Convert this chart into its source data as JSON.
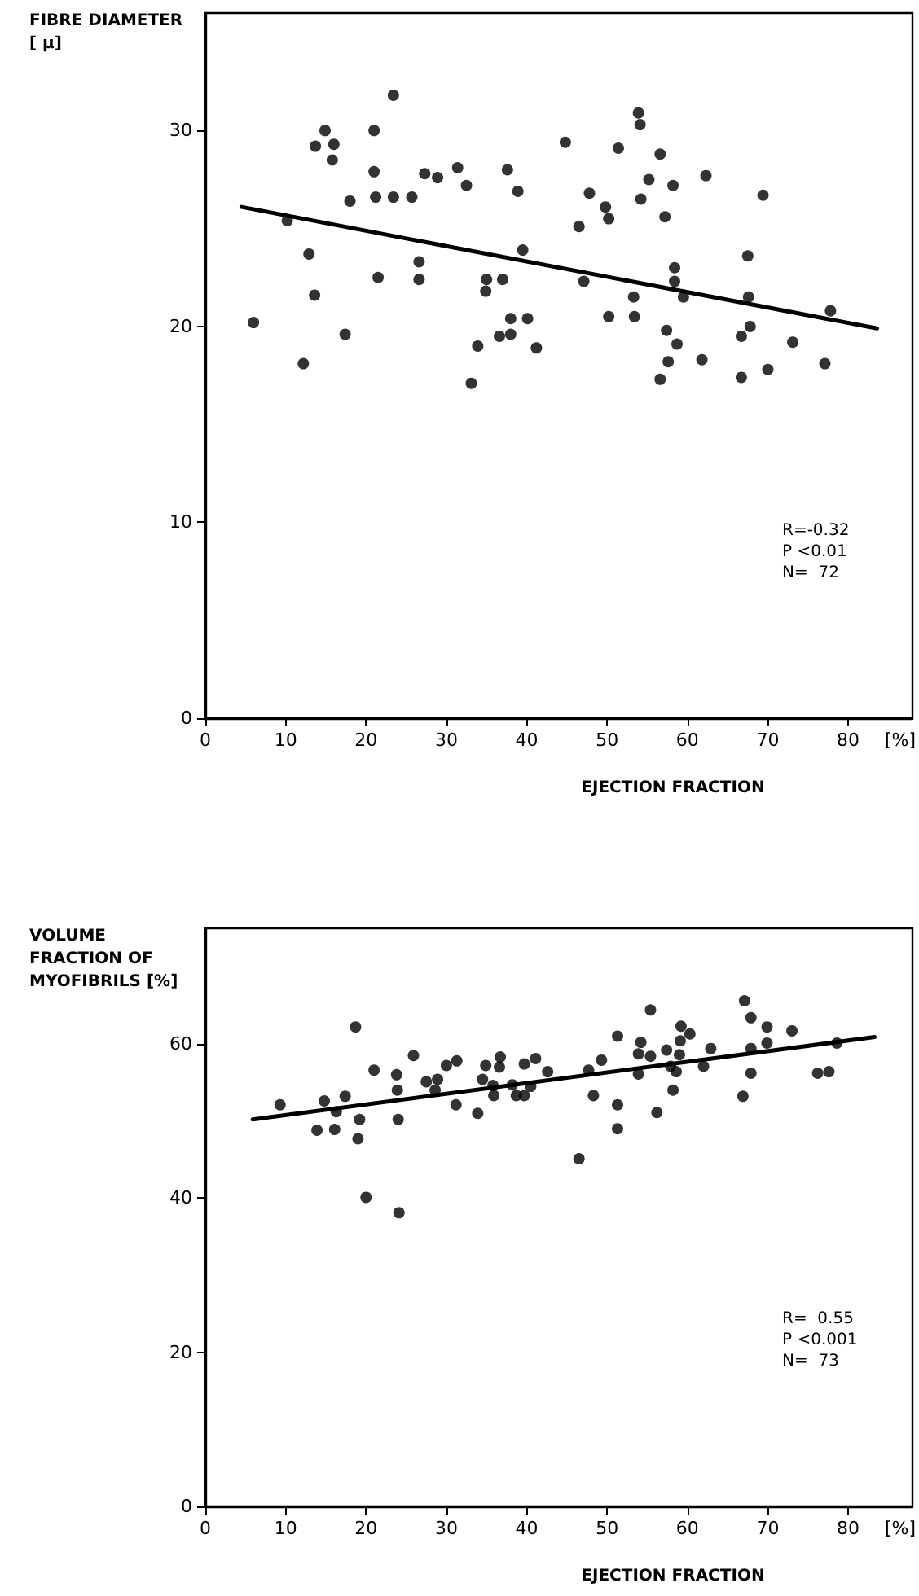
{
  "chart_data": [
    {
      "type": "scatter",
      "xlabel": "EJECTION FRACTION",
      "ylabel": "FIBRE DIAMETER [ μ]",
      "annotations": [
        "[%]",
        "R=-0.32",
        "P <0.01",
        "N=  72"
      ],
      "xlim": [
        0,
        88
      ],
      "xticks": [
        0,
        10,
        20,
        30,
        40,
        50,
        60,
        70,
        80
      ],
      "ylim": [
        0,
        36
      ],
      "yticks": [
        0,
        10,
        20,
        30
      ],
      "grid": false,
      "marker": "circle",
      "series": [
        {
          "color": "#000000",
          "x": [
            23.4,
            14.9,
            21.0,
            13.7,
            16.0,
            15.8,
            21.0,
            27.3,
            28.9,
            31.4,
            32.5,
            37.6,
            38.9,
            44.8,
            18.0,
            21.2,
            23.4,
            25.7,
            10.2,
            12.9,
            26.6,
            39.5,
            21.5,
            26.6,
            35.0,
            37.0,
            34.9,
            13.6,
            6.0,
            17.4,
            38.0,
            40.1,
            36.6,
            38.0,
            33.9,
            41.2,
            12.2,
            33.1,
            53.9,
            54.1,
            51.4,
            56.6,
            62.3,
            55.2,
            58.2,
            47.8,
            54.2,
            69.4,
            49.8,
            50.2,
            57.2,
            46.5,
            67.5,
            58.4,
            58.4,
            47.1,
            59.5,
            53.3,
            67.6,
            77.8,
            50.2,
            53.4,
            57.4,
            67.8,
            66.7,
            58.7,
            73.1,
            61.8,
            57.6,
            70.0,
            77.1,
            56.6,
            66.7
          ],
          "values": [
            31.8,
            30.0,
            30.0,
            29.2,
            29.3,
            28.5,
            27.9,
            27.8,
            27.6,
            28.1,
            27.2,
            28.0,
            26.9,
            29.4,
            26.4,
            26.6,
            26.6,
            26.6,
            25.4,
            23.7,
            23.3,
            23.9,
            22.5,
            22.4,
            22.4,
            22.4,
            21.8,
            21.6,
            20.2,
            19.6,
            20.4,
            20.4,
            19.5,
            19.6,
            19.0,
            18.9,
            18.1,
            17.1,
            30.9,
            30.3,
            29.1,
            28.8,
            27.7,
            27.5,
            27.2,
            26.8,
            26.5,
            26.7,
            26.1,
            25.5,
            25.6,
            25.1,
            23.6,
            23.0,
            22.3,
            22.3,
            21.5,
            21.5,
            21.5,
            20.8,
            20.5,
            20.5,
            19.8,
            20.0,
            19.5,
            19.1,
            19.2,
            18.3,
            18.2,
            17.8,
            18.1,
            17.3,
            17.4
          ]
        },
        {
          "type": "line",
          "color": "#000000",
          "marker": "none",
          "line_style": "solid",
          "x": [
            4.5,
            83.6
          ],
          "values": [
            26.1,
            19.9
          ]
        }
      ]
    },
    {
      "type": "scatter",
      "xlabel": "EJECTION FRACTION",
      "ylabel": "VOLUME FRACTION OF MYOFIBRILS [%]",
      "annotations": [
        "[%]",
        "R=  0.55",
        "P <0.001",
        "N=  73"
      ],
      "xlim": [
        0,
        88
      ],
      "xticks": [
        0,
        10,
        20,
        30,
        40,
        50,
        60,
        70,
        80
      ],
      "ylim": [
        0,
        75
      ],
      "yticks": [
        0,
        20,
        40,
        60
      ],
      "grid": false,
      "marker": "circle",
      "series": [
        {
          "color": "#000000",
          "x": [
            18.7,
            25.9,
            21.0,
            23.8,
            23.9,
            30.0,
            31.3,
            27.5,
            28.9,
            28.6,
            34.9,
            36.7,
            36.6,
            34.5,
            35.8,
            35.9,
            39.7,
            41.1,
            42.6,
            38.2,
            40.5,
            38.7,
            39.7,
            9.3,
            14.8,
            17.4,
            16.3,
            13.9,
            16.1,
            19.2,
            19.0,
            24.0,
            31.2,
            33.9,
            20.0,
            24.1,
            67.1,
            67.9,
            69.9,
            73.0,
            69.9,
            67.9,
            78.6,
            55.4,
            51.3,
            59.2,
            60.3,
            59.1,
            54.2,
            57.4,
            53.9,
            55.4,
            59.0,
            62.9,
            49.3,
            47.7,
            53.9,
            57.9,
            58.6,
            62.0,
            67.9,
            76.2,
            77.6,
            48.3,
            58.2,
            66.9,
            51.3,
            56.2,
            51.3,
            46.5
          ],
          "values": [
            62.2,
            58.5,
            56.6,
            56.0,
            54.0,
            57.2,
            57.8,
            55.1,
            55.4,
            54.0,
            57.2,
            58.3,
            57.0,
            55.4,
            54.6,
            53.3,
            57.4,
            58.1,
            56.4,
            54.7,
            54.5,
            53.3,
            53.3,
            52.1,
            52.6,
            53.2,
            51.2,
            48.8,
            48.9,
            50.2,
            47.7,
            50.2,
            52.1,
            51.0,
            40.1,
            38.1,
            65.6,
            63.4,
            62.2,
            61.7,
            60.1,
            59.4,
            60.1,
            64.4,
            61.0,
            62.3,
            61.3,
            60.4,
            60.2,
            59.2,
            58.7,
            58.4,
            58.6,
            59.4,
            57.9,
            56.6,
            56.1,
            57.1,
            56.4,
            57.1,
            56.2,
            56.2,
            56.4,
            53.3,
            54.0,
            53.2,
            52.1,
            51.1,
            49.0,
            45.1
          ]
        },
        {
          "type": "line",
          "color": "#000000",
          "marker": "none",
          "line_style": "solid",
          "x": [
            5.9,
            83.3
          ],
          "values": [
            50.2,
            60.9
          ]
        }
      ]
    }
  ]
}
